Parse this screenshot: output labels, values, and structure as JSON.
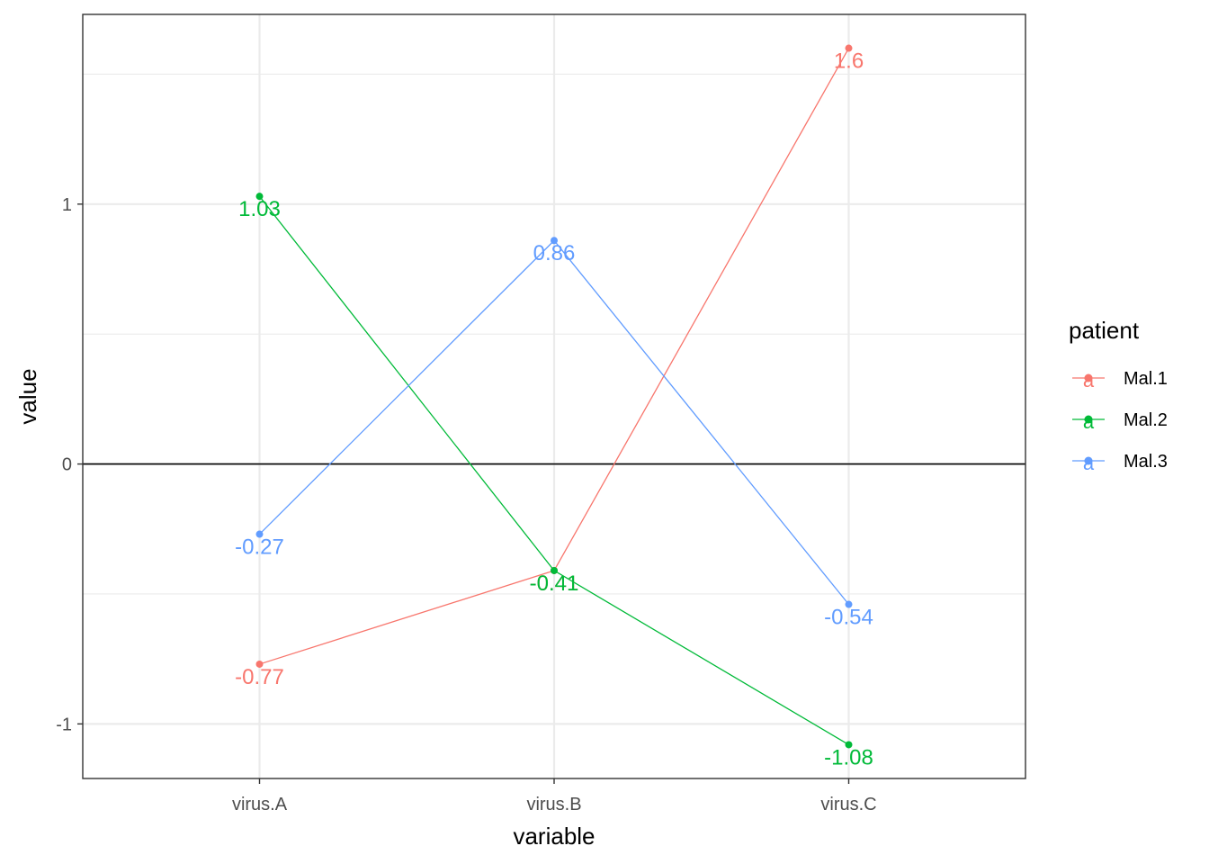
{
  "chart_data": {
    "type": "line",
    "categories": [
      "virus.A",
      "virus.B",
      "virus.C"
    ],
    "series": [
      {
        "name": "Mal.1",
        "color": "#F8766D",
        "values": [
          -0.77,
          -0.41,
          1.6
        ],
        "labels": [
          "-0.77",
          "-0.41",
          "1.6"
        ]
      },
      {
        "name": "Mal.2",
        "color": "#00BA38",
        "values": [
          1.03,
          -0.41,
          -1.08
        ],
        "labels": [
          "1.03",
          "-0.41",
          "-1.08"
        ]
      },
      {
        "name": "Mal.3",
        "color": "#619CFF",
        "values": [
          -0.27,
          0.86,
          -0.54
        ],
        "labels": [
          "-0.27",
          "0.86",
          "-0.54"
        ]
      }
    ],
    "xlabel": "variable",
    "ylabel": "value",
    "ylim": [
      -1.21,
      1.73
    ],
    "yticks": [
      -1,
      0,
      1
    ],
    "ytick_labels": [
      "-1",
      "0",
      "1"
    ],
    "hline": 0,
    "grid": true,
    "legend": {
      "title": "patient",
      "placement": "right",
      "key_glyph": "a"
    }
  }
}
